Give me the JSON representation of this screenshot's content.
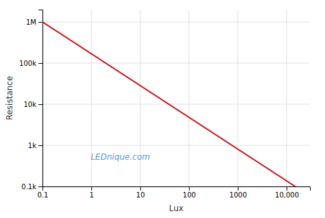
{
  "chart_data": {
    "type": "line",
    "xlabel": "Lux",
    "ylabel": "Resistance",
    "annotations": [
      "LEDnique.com"
    ],
    "x": [
      0.1,
      15000
    ],
    "values": [
      1000000,
      100
    ],
    "color": "#cc1111",
    "log": true,
    "grid": true,
    "xlim": [
      0.1,
      30000
    ],
    "ylim": [
      100,
      2000000
    ],
    "xticks": [
      0.1,
      1,
      10,
      100,
      1000,
      {
        "value": 10000,
        "label": "10,000"
      }
    ],
    "yticks": [
      {
        "value": 100,
        "label": "0.1k"
      },
      {
        "value": 1000,
        "label": "1k"
      },
      {
        "value": 10000,
        "label": "10k"
      },
      {
        "value": 100000,
        "label": "100k"
      },
      {
        "value": 1000000,
        "label": "1M"
      }
    ]
  }
}
